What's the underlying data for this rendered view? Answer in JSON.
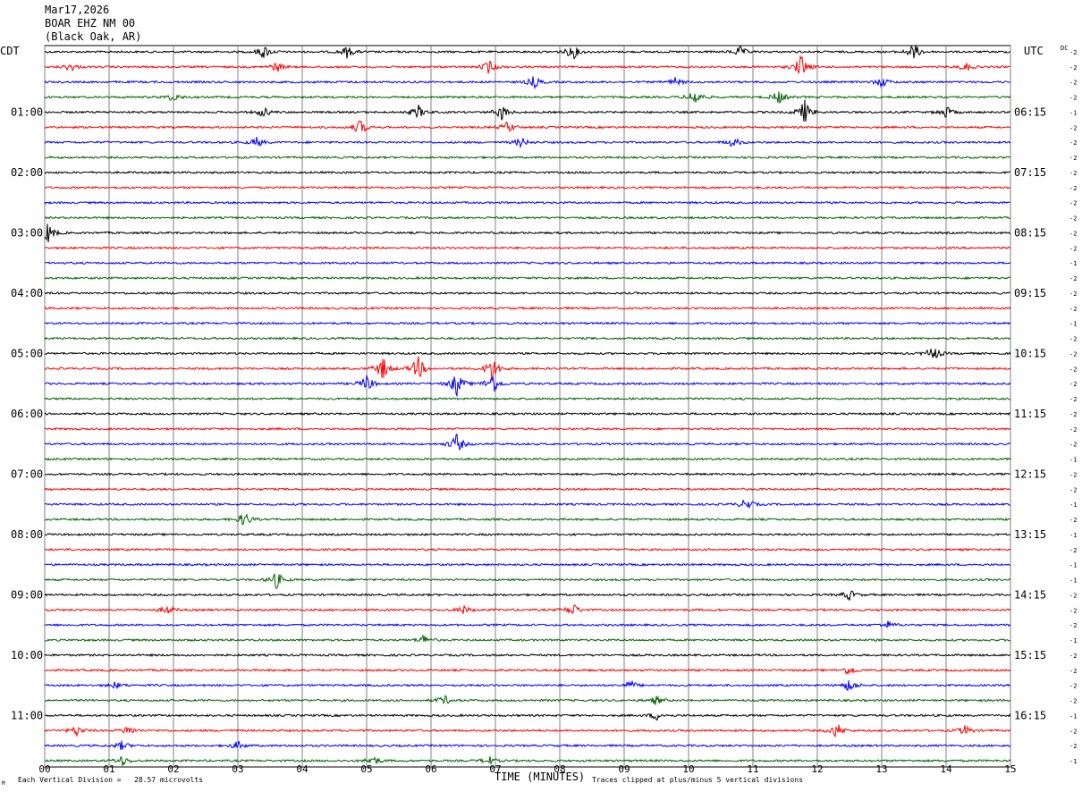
{
  "header": {
    "date": "Mar17,2026",
    "station": "BOAR EHZ NM 00",
    "location": "(Black Oak, AR)"
  },
  "left_zone": "CDT",
  "right_zone": "UTC",
  "dc_label": "DC",
  "footer": {
    "scale_note": "Each Vertical Division =   28.57 microvolts",
    "xlabel": "TIME (MINUTES)",
    "clip_note": "Traces clipped at plus/minus 5 vertical divisions",
    "corner_mark": "M"
  },
  "chart_data": {
    "type": "line",
    "title": "",
    "xlabel": "TIME (MINUTES)",
    "xlim": [
      0,
      15
    ],
    "x_ticks": [
      "00",
      "01",
      "02",
      "03",
      "04",
      "05",
      "06",
      "07",
      "08",
      "09",
      "10",
      "11",
      "12",
      "13",
      "14",
      "15"
    ],
    "trace_count": 48,
    "trace_colors": [
      "#000000",
      "#ff0000",
      "#0000ff",
      "#006400"
    ],
    "left_time_labels": [
      "01:00",
      "02:00",
      "03:00",
      "04:00",
      "05:00",
      "06:00",
      "07:00",
      "08:00",
      "09:00",
      "10:00",
      "11:00"
    ],
    "right_time_labels": [
      "06:15",
      "07:15",
      "08:15",
      "09:15",
      "10:15",
      "11:15",
      "12:15",
      "13:15",
      "14:15",
      "15:15",
      "16:15"
    ],
    "dc_offsets": [
      "-2",
      "-2",
      "-2",
      "-2",
      "-1",
      "-2",
      "-2",
      "-2",
      "-2",
      "-2",
      "-2",
      "-2",
      "-2",
      "-2",
      "-1",
      "-2",
      "-2",
      "-2",
      "-1",
      "-2",
      "-2",
      "-2",
      "-2",
      "-2",
      "-2",
      "-2",
      "-2",
      "-1",
      "-2",
      "-2",
      "-1",
      "-2",
      "-1",
      "-2",
      "-1",
      "-1",
      "-2",
      "-2",
      "-2",
      "-1",
      "-2",
      "-2",
      "-2",
      "-2",
      "-1",
      "-2",
      "-2",
      "-1"
    ],
    "events": [
      {
        "trace": 0,
        "minute": 3.4,
        "amp": 8
      },
      {
        "trace": 0,
        "minute": 4.7,
        "amp": 7
      },
      {
        "trace": 0,
        "minute": 8.2,
        "amp": 9
      },
      {
        "trace": 0,
        "minute": 10.8,
        "amp": 6
      },
      {
        "trace": 0,
        "minute": 13.5,
        "amp": 10
      },
      {
        "trace": 1,
        "minute": 0.4,
        "amp": 5
      },
      {
        "trace": 1,
        "minute": 3.6,
        "amp": 6
      },
      {
        "trace": 1,
        "minute": 6.9,
        "amp": 8
      },
      {
        "trace": 1,
        "minute": 11.75,
        "amp": 14
      },
      {
        "trace": 1,
        "minute": 14.3,
        "amp": 5
      },
      {
        "trace": 2,
        "minute": 7.6,
        "amp": 7
      },
      {
        "trace": 2,
        "minute": 9.8,
        "amp": 5
      },
      {
        "trace": 2,
        "minute": 13.0,
        "amp": 6
      },
      {
        "trace": 3,
        "minute": 2.0,
        "amp": 5
      },
      {
        "trace": 3,
        "minute": 10.1,
        "amp": 10
      },
      {
        "trace": 3,
        "minute": 11.4,
        "amp": 8
      },
      {
        "trace": 4,
        "minute": 3.4,
        "amp": 6
      },
      {
        "trace": 4,
        "minute": 5.8,
        "amp": 8
      },
      {
        "trace": 4,
        "minute": 7.1,
        "amp": 9
      },
      {
        "trace": 4,
        "minute": 11.8,
        "amp": 14
      },
      {
        "trace": 4,
        "minute": 14.0,
        "amp": 7
      },
      {
        "trace": 5,
        "minute": 4.9,
        "amp": 9
      },
      {
        "trace": 5,
        "minute": 7.2,
        "amp": 7
      },
      {
        "trace": 6,
        "minute": 3.3,
        "amp": 6
      },
      {
        "trace": 6,
        "minute": 7.4,
        "amp": 6
      },
      {
        "trace": 6,
        "minute": 10.7,
        "amp": 6
      },
      {
        "trace": 12,
        "minute": 0.05,
        "amp": 12
      },
      {
        "trace": 21,
        "minute": 5.25,
        "amp": 14
      },
      {
        "trace": 21,
        "minute": 5.8,
        "amp": 14
      },
      {
        "trace": 21,
        "minute": 6.95,
        "amp": 16
      },
      {
        "trace": 22,
        "minute": 5.0,
        "amp": 10
      },
      {
        "trace": 22,
        "minute": 6.4,
        "amp": 14
      },
      {
        "trace": 22,
        "minute": 6.95,
        "amp": 14
      },
      {
        "trace": 20,
        "minute": 13.8,
        "amp": 9
      },
      {
        "trace": 26,
        "minute": 6.4,
        "amp": 12
      },
      {
        "trace": 30,
        "minute": 10.9,
        "amp": 7
      },
      {
        "trace": 31,
        "minute": 3.1,
        "amp": 9
      },
      {
        "trace": 35,
        "minute": 3.6,
        "amp": 10
      },
      {
        "trace": 36,
        "minute": 12.5,
        "amp": 6
      },
      {
        "trace": 37,
        "minute": 1.9,
        "amp": 5
      },
      {
        "trace": 37,
        "minute": 8.2,
        "amp": 8
      },
      {
        "trace": 37,
        "minute": 6.5,
        "amp": 5
      },
      {
        "trace": 38,
        "minute": 13.1,
        "amp": 4
      },
      {
        "trace": 39,
        "minute": 5.9,
        "amp": 6
      },
      {
        "trace": 41,
        "minute": 12.5,
        "amp": 6
      },
      {
        "trace": 42,
        "minute": 1.1,
        "amp": 4
      },
      {
        "trace": 42,
        "minute": 9.1,
        "amp": 5
      },
      {
        "trace": 42,
        "minute": 12.5,
        "amp": 8
      },
      {
        "trace": 43,
        "minute": 6.2,
        "amp": 6
      },
      {
        "trace": 43,
        "minute": 9.5,
        "amp": 5
      },
      {
        "trace": 44,
        "minute": 9.5,
        "amp": 5
      },
      {
        "trace": 45,
        "minute": 0.5,
        "amp": 6
      },
      {
        "trace": 45,
        "minute": 1.3,
        "amp": 6
      },
      {
        "trace": 45,
        "minute": 12.3,
        "amp": 9
      },
      {
        "trace": 45,
        "minute": 14.3,
        "amp": 6
      },
      {
        "trace": 46,
        "minute": 1.2,
        "amp": 5
      },
      {
        "trace": 46,
        "minute": 3.0,
        "amp": 5
      },
      {
        "trace": 47,
        "minute": 1.2,
        "amp": 6
      },
      {
        "trace": 47,
        "minute": 5.1,
        "amp": 6
      },
      {
        "trace": 47,
        "minute": 6.9,
        "amp": 5
      }
    ]
  }
}
